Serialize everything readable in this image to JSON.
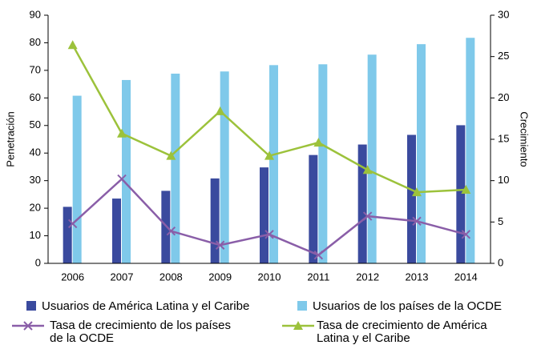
{
  "chart_data": {
    "type": "bar-line",
    "categories": [
      "2006",
      "2007",
      "2008",
      "2009",
      "2010",
      "2011",
      "2012",
      "2013",
      "2014"
    ],
    "ylabel": "Penetración",
    "y2label": "Crecimiento",
    "ylim": [
      0,
      90
    ],
    "yticks": [
      0,
      10,
      20,
      30,
      40,
      50,
      60,
      70,
      80,
      90
    ],
    "y2lim": [
      0,
      30
    ],
    "y2ticks": [
      0,
      5,
      10,
      15,
      20,
      25,
      30
    ],
    "series": [
      {
        "name": "Usuarios de América Latina y el Caribe",
        "type": "bar",
        "color": "#3a4a9e",
        "values": [
          20.5,
          23.5,
          26.3,
          30.8,
          34.8,
          39.3,
          43.1,
          46.6,
          50.1
        ]
      },
      {
        "name": "Usuarios de los países de la OCDE",
        "type": "bar",
        "color": "#7fc9ea",
        "values": [
          60.8,
          66.5,
          68.8,
          69.6,
          71.9,
          72.2,
          75.7,
          79.5,
          81.8
        ]
      },
      {
        "name": "Tasa de crecimiento de los países de la OCDE",
        "type": "line",
        "axis": "y2",
        "marker": "x",
        "color": "#8a5ea8",
        "values": [
          4.8,
          10.2,
          3.9,
          2.2,
          3.5,
          1.0,
          5.7,
          5.1,
          3.5
        ]
      },
      {
        "name": "Tasa de crecimiento de América Latina y el Caribe",
        "type": "line",
        "axis": "y2",
        "marker": "triangle",
        "color": "#9cc23b",
        "values": [
          26.4,
          15.7,
          13.0,
          18.4,
          13.0,
          14.6,
          11.3,
          8.6,
          8.9
        ]
      }
    ]
  }
}
